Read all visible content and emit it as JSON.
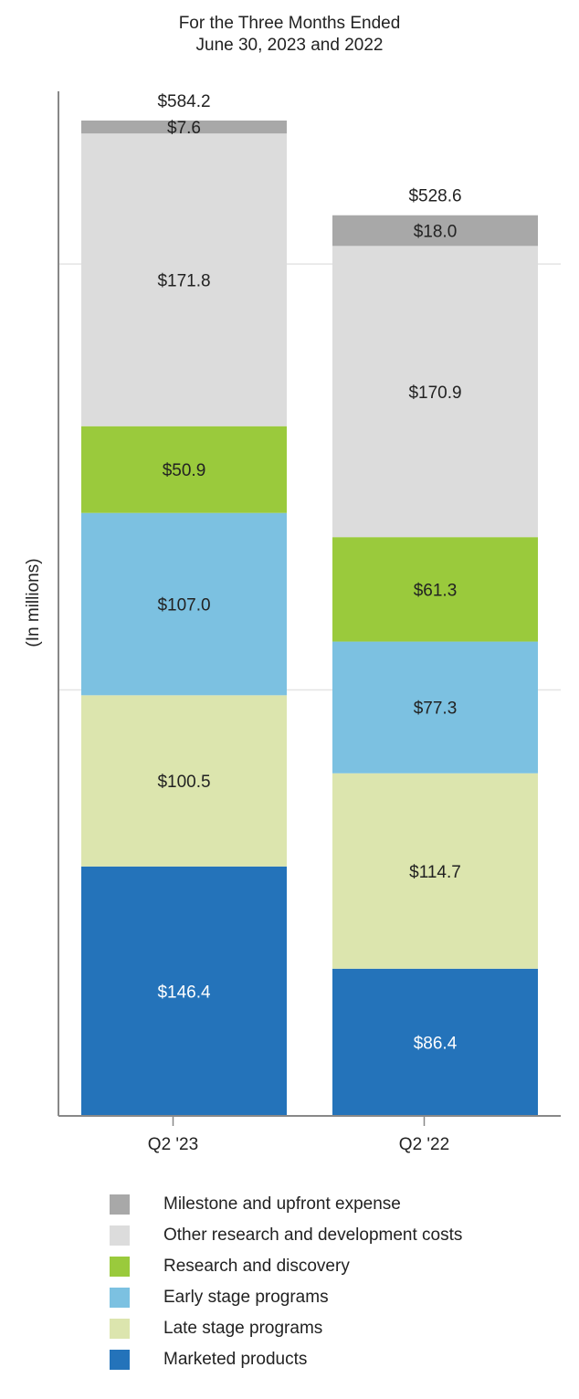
{
  "chart_data": {
    "type": "bar",
    "stacked": true,
    "title": "For the Three Months Ended",
    "subtitle": "June 30, 2023 and 2022",
    "ylabel": "(In millions)",
    "xlabel": "",
    "categories": [
      "Q2 '23",
      "Q2 '22"
    ],
    "totals": [
      "$584.2",
      "$528.6"
    ],
    "ylim": [
      0,
      600
    ],
    "grid": true,
    "series": [
      {
        "name": "Marketed products",
        "color": "#2473ba",
        "label_color": "#ffffff",
        "values": [
          146.4,
          86.4
        ],
        "labels": [
          "$146.4",
          "$86.4"
        ]
      },
      {
        "name": "Late stage programs",
        "color": "#dce5ae",
        "label_color": "#222222",
        "values": [
          100.5,
          114.7
        ],
        "labels": [
          "$100.5",
          "$114.7"
        ]
      },
      {
        "name": "Early stage programs",
        "color": "#7cc1e1",
        "label_color": "#222222",
        "values": [
          107.0,
          77.3
        ],
        "labels": [
          "$107.0",
          "$77.3"
        ]
      },
      {
        "name": "Research and discovery",
        "color": "#9aca3c",
        "label_color": "#222222",
        "values": [
          50.9,
          61.3
        ],
        "labels": [
          "$50.9",
          "$61.3"
        ]
      },
      {
        "name": "Other research and development costs",
        "color": "#dcdcdc",
        "label_color": "#222222",
        "values": [
          171.8,
          170.9
        ],
        "labels": [
          "$171.8",
          "$170.9"
        ]
      },
      {
        "name": "Milestone and upfront expense",
        "color": "#a8a8a8",
        "label_color": "#222222",
        "values": [
          7.6,
          18.0
        ],
        "labels": [
          "$7.6",
          "$18.0"
        ]
      }
    ],
    "legend_order": [
      5,
      4,
      3,
      2,
      1,
      0
    ],
    "legend_position": "bottom"
  }
}
